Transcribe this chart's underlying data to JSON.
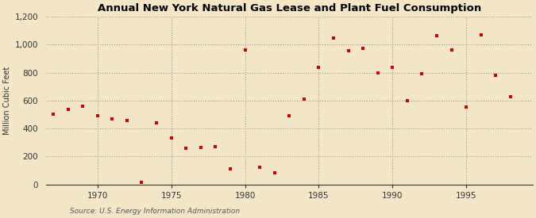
{
  "title": "Annual New York Natural Gas Lease and Plant Fuel Consumption",
  "ylabel": "Million Cubic Feet",
  "source": "Source: U.S. Energy Information Administration",
  "background_color": "#f5e6c8",
  "plot_background_color": "#f5e6c8",
  "marker_color": "#cc0000",
  "xlim": [
    1966.5,
    1999.5
  ],
  "ylim": [
    0,
    1200
  ],
  "yticks": [
    0,
    200,
    400,
    600,
    800,
    1000,
    1200
  ],
  "xticks": [
    1970,
    1975,
    1980,
    1985,
    1990,
    1995
  ],
  "years": [
    1967,
    1968,
    1969,
    1970,
    1971,
    1972,
    1973,
    1974,
    1975,
    1976,
    1977,
    1978,
    1979,
    1980,
    1981,
    1982,
    1983,
    1984,
    1985,
    1986,
    1987,
    1988,
    1989,
    1990,
    1991,
    1992,
    1993,
    1994,
    1995,
    1996,
    1997,
    1998
  ],
  "values": [
    500,
    535,
    560,
    490,
    470,
    455,
    15,
    440,
    335,
    260,
    265,
    270,
    110,
    960,
    120,
    80,
    490,
    610,
    840,
    1045,
    955,
    975,
    800,
    840,
    600,
    790,
    1065,
    960,
    555,
    1070,
    780,
    625
  ]
}
